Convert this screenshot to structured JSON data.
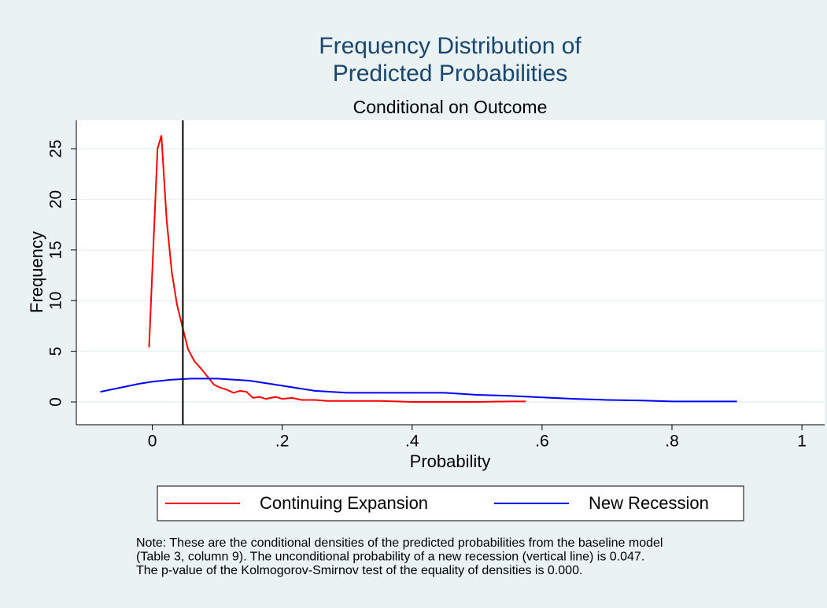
{
  "chart_data": {
    "type": "line",
    "title": [
      "Frequency Distribution of",
      "Predicted Probabilities"
    ],
    "subtitle": "Conditional on Outcome",
    "xlabel": "Probability",
    "ylabel": "Frequency",
    "xlim": [
      -0.117,
      1.035
    ],
    "ylim": [
      -2.25,
      27.8
    ],
    "xticks": [
      0,
      {
        "value": 0.2,
        "label": ".2"
      },
      {
        "value": 0.4,
        "label": ".4"
      },
      {
        "value": 0.6,
        "label": ".6"
      },
      {
        "value": 0.8,
        "label": ".8"
      },
      1
    ],
    "yticks": [
      0,
      5,
      10,
      15,
      20,
      25
    ],
    "grid": true,
    "vline": 0.047,
    "series": [
      {
        "name": "Continuing Expansion",
        "color": "#ff0000",
        "x": [
          -0.005,
          0.008,
          0.014,
          0.022,
          0.03,
          0.038,
          0.046,
          0.055,
          0.065,
          0.075,
          0.085,
          0.095,
          0.105,
          0.115,
          0.125,
          0.135,
          0.145,
          0.155,
          0.165,
          0.175,
          0.19,
          0.2,
          0.215,
          0.23,
          0.25,
          0.27,
          0.3,
          0.32,
          0.35,
          0.4,
          0.45,
          0.5,
          0.55,
          0.575
        ],
        "values": [
          5.4,
          25,
          26.3,
          18,
          12.8,
          9.6,
          7.5,
          5.2,
          4,
          3.3,
          2.5,
          1.7,
          1.4,
          1.2,
          0.9,
          1.1,
          1.0,
          0.4,
          0.5,
          0.3,
          0.5,
          0.3,
          0.4,
          0.2,
          0.2,
          0.1,
          0.1,
          0.1,
          0.1,
          0,
          0,
          0,
          0.05,
          0.05
        ]
      },
      {
        "name": "New Recession",
        "color": "#0000ff",
        "x": [
          -0.08,
          -0.05,
          -0.02,
          0,
          0.03,
          0.06,
          0.1,
          0.15,
          0.2,
          0.25,
          0.3,
          0.35,
          0.4,
          0.45,
          0.5,
          0.55,
          0.6,
          0.65,
          0.7,
          0.75,
          0.8,
          0.85,
          0.9
        ],
        "values": [
          1.0,
          1.4,
          1.8,
          2.0,
          2.2,
          2.3,
          2.3,
          2.1,
          1.6,
          1.1,
          0.9,
          0.9,
          0.9,
          0.9,
          0.7,
          0.6,
          0.45,
          0.3,
          0.2,
          0.15,
          0.05,
          0.05,
          0.05
        ]
      }
    ],
    "note": [
      "Note: These are the conditional densities of the predicted probabilities from the baseline model",
      "(Table 3, column 9). The unconditional probability of a new recession (vertical line) is 0.047.",
      "The p-value of the Kolmogorov-Smirnov test of the equality of densities is 0.000."
    ]
  }
}
